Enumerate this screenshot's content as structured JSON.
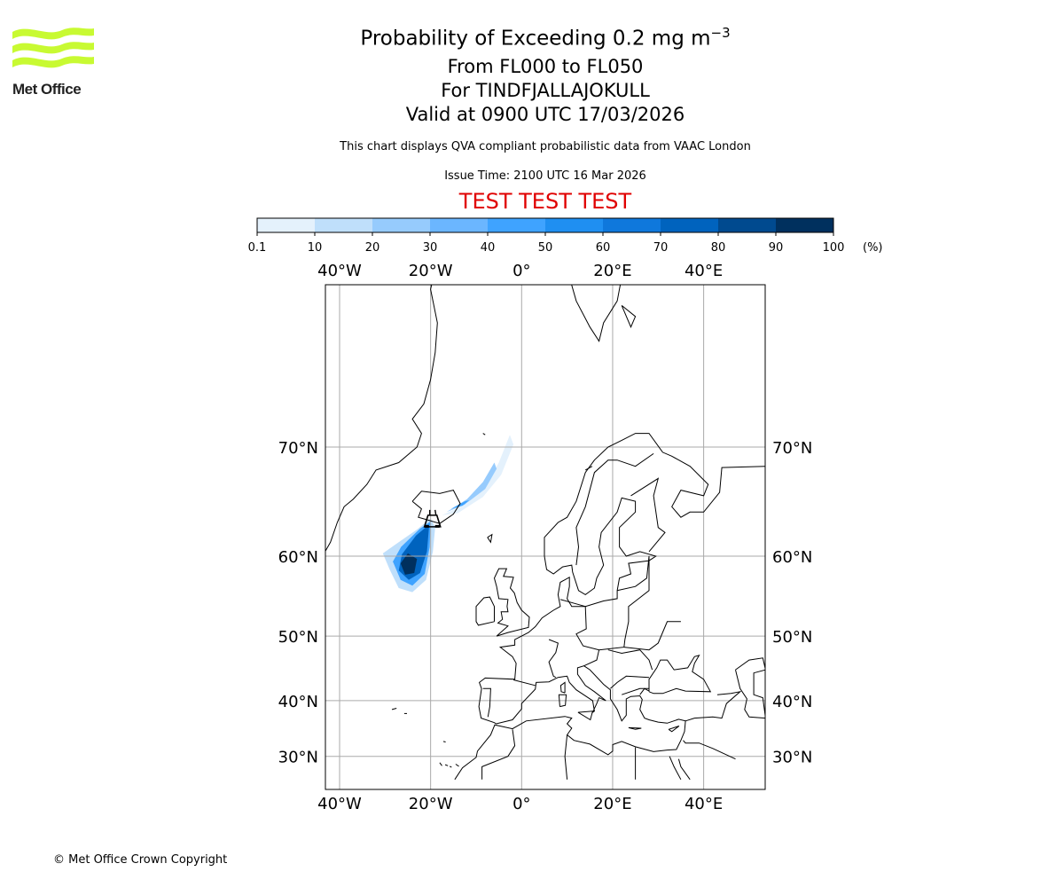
{
  "header": {
    "title_main": "Probability of Exceeding 0.2 mg m",
    "title_sup": "−3",
    "level_range": "From FL000 to FL050",
    "volcano": "For TINDFJALLAJOKULL",
    "valid": "Valid at 0900 UTC 17/03/2026",
    "note": "This chart displays QVA compliant probabilistic data from VAAC London",
    "issue_time": "Issue Time: 2100 UTC 16 Mar 2026",
    "test_banner": "TEST TEST TEST"
  },
  "logo": {
    "text": "Met Office",
    "color": "#c8fa32"
  },
  "footer": "© Met Office Crown Copyright",
  "chart_data": {
    "type": "heatmap",
    "title": "Probability of Exceeding 0.2 mg m−3",
    "colorbar": {
      "tick_labels": [
        "0.1",
        "10",
        "20",
        "30",
        "40",
        "50",
        "60",
        "70",
        "80",
        "90",
        "100"
      ],
      "unit": "(%)",
      "colors": [
        "#e4f1fc",
        "#bfdffb",
        "#96cbfd",
        "#6bb6ff",
        "#3fa3ff",
        "#1f8ff1",
        "#0f78dc",
        "#0063be",
        "#004a8f",
        "#00305e"
      ]
    },
    "grid": {
      "lons": [
        -40,
        -20,
        0,
        20,
        40
      ],
      "lon_labels": [
        "40°W",
        "20°W",
        "0°",
        "20°E",
        "40°E"
      ],
      "lats": [
        30,
        40,
        50,
        60,
        70
      ],
      "lat_labels": [
        "30°N",
        "40°N",
        "50°N",
        "60°N",
        "70°N"
      ],
      "lon_range": [
        -43.1,
        53.6
      ],
      "lat_range": [
        25.6,
        80.5
      ]
    },
    "volcano_location": [
      -19.6,
      63.6
    ]
  }
}
